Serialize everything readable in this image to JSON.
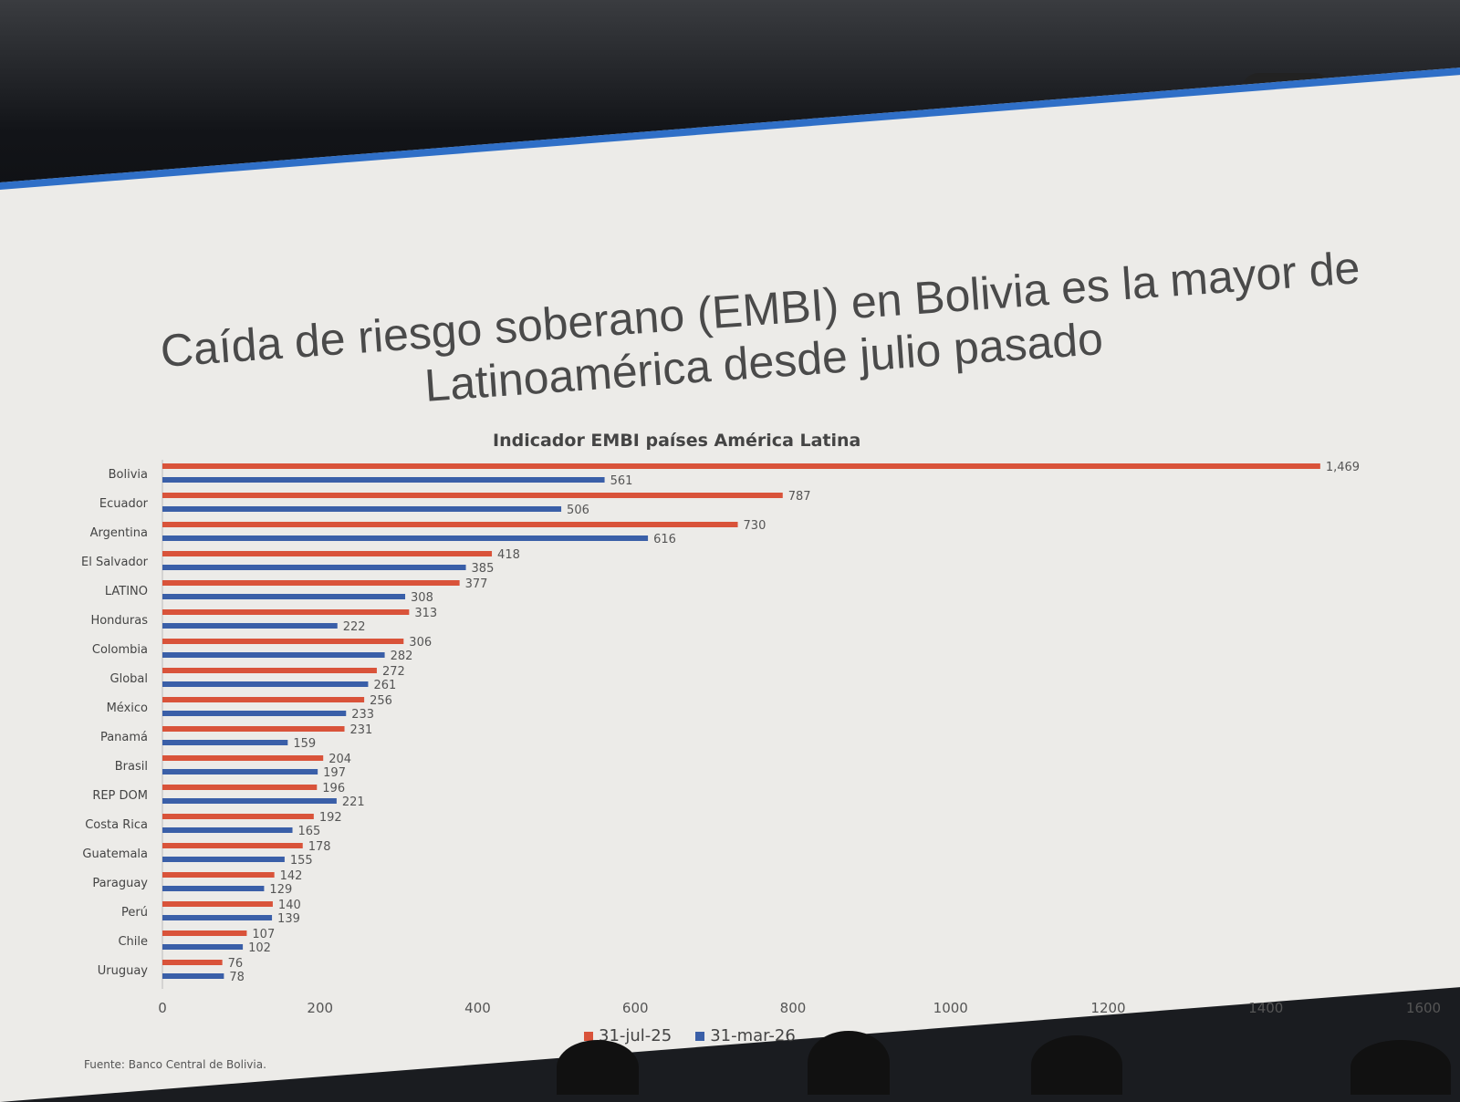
{
  "slide": {
    "title": "Caída de riesgo soberano (EMBI) en Bolivia es la mayor de Latinoamérica desde julio pasado",
    "source": "Fuente: Banco Central de Bolivia."
  },
  "chart_data": {
    "type": "bar",
    "orientation": "horizontal",
    "title": "Indicador EMBI países América Latina",
    "categories": [
      "Bolivia",
      "Ecuador",
      "Argentina",
      "El Salvador",
      "LATINO",
      "Honduras",
      "Colombia",
      "Global",
      "México",
      "Panamá",
      "Brasil",
      "REP DOM",
      "Costa Rica",
      "Guatemala",
      "Paraguay",
      "Perú",
      "Chile",
      "Uruguay"
    ],
    "series": [
      {
        "name": "31-jul-25",
        "color": "#d9533a",
        "values": [
          1469,
          787,
          730,
          418,
          377,
          313,
          306,
          272,
          256,
          231,
          204,
          196,
          192,
          178,
          142,
          140,
          107,
          76
        ]
      },
      {
        "name": "31-mar-26",
        "color": "#3a5fa8",
        "values": [
          561,
          506,
          616,
          385,
          308,
          222,
          282,
          261,
          233,
          159,
          197,
          221,
          165,
          155,
          129,
          139,
          102,
          78
        ]
      }
    ],
    "xlim": [
      0,
      1600
    ],
    "xticks": [
      "0",
      "200",
      "400",
      "600",
      "800",
      "1000",
      "1200",
      "1400",
      "1600"
    ],
    "data_labels": [
      [
        "1,469",
        "787",
        "730",
        "418",
        "377",
        "313",
        "306",
        "272",
        "256",
        "231",
        "204",
        "196",
        "192",
        "178",
        "142",
        "140",
        "107",
        "76"
      ],
      [
        "561",
        "506",
        "616",
        "385",
        "308",
        "222",
        "282",
        "261",
        "233",
        "159",
        "197",
        "221",
        "165",
        "155",
        "129",
        "139",
        "102",
        "78"
      ]
    ],
    "legend_position": "bottom",
    "grid": false
  }
}
